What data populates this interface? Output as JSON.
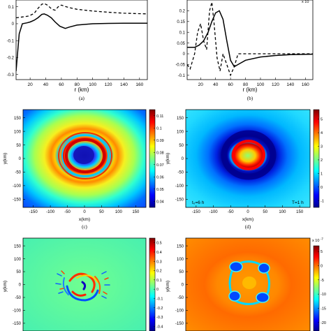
{
  "panels": {
    "a": {
      "caption": "(a)",
      "xlabel": "r (km)",
      "xticks": [
        "20",
        "40",
        "60",
        "80",
        "100",
        "120",
        "140",
        "160"
      ],
      "yticks": [
        "0.1",
        "0",
        "-0.1",
        "-0.2",
        "-0.3"
      ]
    },
    "b": {
      "caption": "(b)",
      "xlabel": "r (km)",
      "xticks": [
        "20",
        "40",
        "60",
        "80",
        "100",
        "120",
        "140",
        "160"
      ],
      "yticks": [
        "0.2",
        "0.15",
        "0.1",
        "0.05",
        "0",
        "-0.05",
        "-0.1"
      ],
      "exponent": "x 10"
    },
    "c": {
      "caption": "(c)",
      "xlabel": "x(km)",
      "ylabel": "y(km)",
      "xticks": [
        "-150",
        "-100",
        "-50",
        "0",
        "50",
        "100",
        "150"
      ],
      "yticks": [
        "150",
        "100",
        "50",
        "0",
        "-50",
        "-100",
        "-150"
      ],
      "cbar_ticks": [
        "0.11",
        "0.1",
        "0.09",
        "0.08",
        "0.07",
        "0.06",
        "0.05",
        "0.04"
      ]
    },
    "d": {
      "caption": "(d)",
      "xlabel": "x(km)",
      "ylabel": "y(km)",
      "xticks": [
        "-150",
        "-100",
        "-50",
        "0",
        "50",
        "100",
        "150"
      ],
      "yticks": [
        "150",
        "100",
        "50",
        "0",
        "-50",
        "-100",
        "-150"
      ],
      "cbar_ticks": [
        "5",
        "4",
        "3",
        "2",
        "1",
        "0",
        "-1"
      ],
      "annot_left": "t₀=6 h",
      "annot_right": "T=1 h"
    },
    "e": {
      "ylabel": "y(km)",
      "yticks": [
        "150",
        "100",
        "50",
        "0",
        "-50",
        "-100",
        "-150"
      ],
      "cbar_ticks": [
        "0.5",
        "0.4",
        "0.3",
        "0.2",
        "0.1",
        "0",
        "-0.1",
        "-0.2",
        "-0.3",
        "-0.4"
      ]
    },
    "f": {
      "ylabel": "y(km)",
      "yticks": [
        "150",
        "100",
        "50",
        "0",
        "-50",
        "-100",
        "-150"
      ],
      "cbar_ticks": [
        "5",
        "0",
        "-5",
        "-10",
        "-15",
        "-20"
      ],
      "exponent": "x 10",
      "exponent_power": "-7"
    }
  },
  "chart_data": [
    {
      "type": "line",
      "panel": "a",
      "xlabel": "r (km)",
      "xlim": [
        2,
        170
      ],
      "ylim": [
        -0.33,
        0.14
      ],
      "series": [
        {
          "style": "solid",
          "x": [
            2,
            6,
            10,
            16,
            20,
            25,
            30,
            35,
            38,
            42,
            47,
            52,
            58,
            65,
            70,
            80,
            100,
            120,
            140,
            170
          ],
          "y": [
            -0.28,
            -0.06,
            0.0,
            0.005,
            0.01,
            0.02,
            0.035,
            0.055,
            0.058,
            0.05,
            0.035,
            0.01,
            -0.015,
            -0.028,
            -0.02,
            -0.008,
            0.0,
            0.002,
            0.003,
            0.003
          ]
        },
        {
          "style": "dashed",
          "x": [
            2,
            10,
            18,
            25,
            30,
            35,
            38,
            42,
            48,
            52,
            56,
            60,
            65,
            70,
            80,
            100,
            120,
            140,
            170
          ],
          "y": [
            0.035,
            0.04,
            0.045,
            0.06,
            0.09,
            0.115,
            0.12,
            0.11,
            0.085,
            0.08,
            0.1,
            0.11,
            0.102,
            0.095,
            0.085,
            0.075,
            0.068,
            0.062,
            0.058
          ]
        }
      ]
    },
    {
      "type": "line",
      "panel": "b",
      "xlabel": "r (km)",
      "xlim": [
        2,
        170
      ],
      "ylim": [
        -0.12,
        0.25
      ],
      "series": [
        {
          "style": "solid",
          "x": [
            2,
            6,
            12,
            18,
            24,
            30,
            35,
            40,
            45,
            50,
            55,
            60,
            65,
            70,
            80,
            100,
            120,
            140,
            170
          ],
          "y": [
            0.03,
            0.03,
            0.03,
            0.04,
            0.06,
            0.1,
            0.15,
            0.19,
            0.2,
            0.16,
            0.06,
            -0.03,
            -0.06,
            -0.05,
            -0.03,
            -0.015,
            -0.008,
            -0.004,
            -0.002
          ]
        },
        {
          "style": "dashed",
          "x": [
            2,
            6,
            12,
            16,
            20,
            24,
            28,
            32,
            35,
            38,
            42,
            46,
            50,
            55,
            60,
            65,
            70,
            80,
            100,
            120,
            140,
            170
          ],
          "y": [
            -0.05,
            -0.07,
            0.0,
            0.1,
            0.14,
            0.06,
            0.02,
            0.2,
            0.24,
            0.14,
            -0.02,
            -0.08,
            0.0,
            -0.05,
            -0.1,
            -0.06,
            0.0,
            0.0,
            0.0,
            0.0,
            0.0,
            0.0
          ]
        }
      ]
    },
    {
      "type": "heatmap",
      "panel": "c",
      "xlabel": "x(km)",
      "ylabel": "y(km)",
      "xlim": [
        -180,
        180
      ],
      "ylim": [
        -180,
        180
      ],
      "clim": [
        0.035,
        0.115
      ],
      "field": "rings: blue core r<25, red ring r≈30-40, green/yellow band r≈45, background decaying to blue at edges"
    },
    {
      "type": "heatmap",
      "panel": "d",
      "xlabel": "x(km)",
      "ylabel": "y(km)",
      "xlim": [
        -180,
        180
      ],
      "ylim": [
        -180,
        180
      ],
      "clim": [
        -1.5,
        5.7
      ],
      "field": "red/yellow inner disk r<30, dark-blue annulus r≈35-55, light-blue/cyan background"
    },
    {
      "type": "heatmap",
      "panel": "e",
      "ylabel": "y(km)",
      "ylim": [
        -180,
        180
      ],
      "clim": [
        -0.45,
        0.55
      ],
      "field": "green background with spiral red/blue wave pattern at center"
    },
    {
      "type": "heatmap",
      "panel": "f",
      "ylabel": "y(km)",
      "ylim": [
        -180,
        180
      ],
      "clim": [
        -23,
        7
      ],
      "field": "orange background with squarish blue-cyan loop and four lobes near center"
    }
  ]
}
